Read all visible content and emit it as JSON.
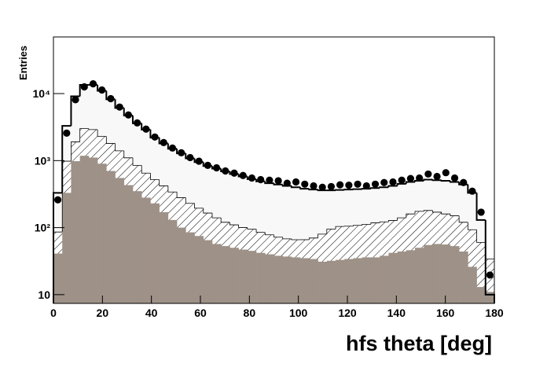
{
  "chart_data": {
    "type": "histogram",
    "x_label": "hfs theta [deg]",
    "y_label": "Entries",
    "log_y": true,
    "xlim": [
      0,
      180
    ],
    "ylim": [
      7.4,
      70000
    ],
    "xticks": [
      0,
      20,
      40,
      60,
      80,
      100,
      120,
      140,
      160,
      180
    ],
    "yticks": [
      10,
      {
        "value": 100,
        "label": "10²"
      },
      {
        "value": 1000,
        "label": "10³"
      },
      {
        "value": 10000,
        "label": "10⁴"
      }
    ],
    "bins": [
      0,
      3.6,
      7.2,
      10.8,
      14.4,
      18,
      21.6,
      25.2,
      28.8,
      32.4,
      36,
      39.6,
      43.2,
      46.8,
      50.4,
      54,
      57.6,
      61.2,
      64.8,
      68.4,
      72,
      75.6,
      79.2,
      82.8,
      86.4,
      90,
      93.6,
      97.2,
      100.8,
      104.4,
      108,
      111.6,
      115.2,
      118.8,
      122.4,
      126,
      129.6,
      133.2,
      136.8,
      140.4,
      144,
      147.6,
      151.2,
      154.8,
      158.4,
      162,
      165.6,
      169.2,
      172.8,
      176.4,
      180
    ],
    "series": [
      {
        "style": "filled-step",
        "color": "#f8f8f8",
        "line_color": "#000000",
        "values": [
          330,
          3300,
          9100,
          13500,
          13500,
          11000,
          8200,
          6100,
          4700,
          3600,
          2900,
          2200,
          1800,
          1500,
          1280,
          1080,
          950,
          830,
          760,
          690,
          630,
          580,
          530,
          490,
          460,
          440,
          420,
          400,
          380,
          370,
          360,
          360,
          365,
          370,
          375,
          380,
          390,
          400,
          420,
          450,
          480,
          500,
          520,
          510,
          500,
          480,
          440,
          330,
          130,
          10
        ]
      },
      {
        "style": "hatched",
        "color": "#ffffff",
        "line_color": "#000000",
        "values": [
          86,
          980,
          1900,
          3000,
          2900,
          2300,
          1800,
          1400,
          1100,
          850,
          650,
          520,
          420,
          340,
          280,
          230,
          195,
          165,
          140,
          120,
          110,
          100,
          95,
          85,
          78,
          72,
          68,
          66,
          66,
          70,
          80,
          95,
          104,
          105,
          108,
          112,
          118,
          122,
          128,
          140,
          160,
          175,
          180,
          170,
          160,
          150,
          120,
          93,
          60,
          34
        ]
      },
      {
        "style": "filled",
        "color": "#9e9187",
        "values": [
          41,
          330,
          980,
          1180,
          1110,
          900,
          700,
          550,
          430,
          350,
          280,
          230,
          170,
          130,
          100,
          85,
          75,
          65,
          57,
          53,
          50,
          47,
          45,
          42,
          40,
          38,
          37,
          36,
          35,
          34,
          31,
          32,
          33,
          34,
          35,
          36,
          36,
          38,
          42,
          44,
          46,
          50,
          55,
          57,
          56,
          53,
          44,
          26,
          13,
          11
        ]
      },
      {
        "style": "points",
        "color": "#000000",
        "values": [
          260,
          2570,
          8100,
          12600,
          14000,
          11300,
          8400,
          6300,
          4800,
          3650,
          2950,
          2250,
          1860,
          1540,
          1310,
          1110,
          980,
          850,
          780,
          700,
          650,
          600,
          550,
          520,
          510,
          500,
          460,
          480,
          445,
          420,
          400,
          410,
          435,
          430,
          445,
          420,
          445,
          470,
          480,
          510,
          540,
          550,
          630,
          580,
          660,
          550,
          470,
          350,
          170,
          19.6
        ]
      }
    ]
  }
}
